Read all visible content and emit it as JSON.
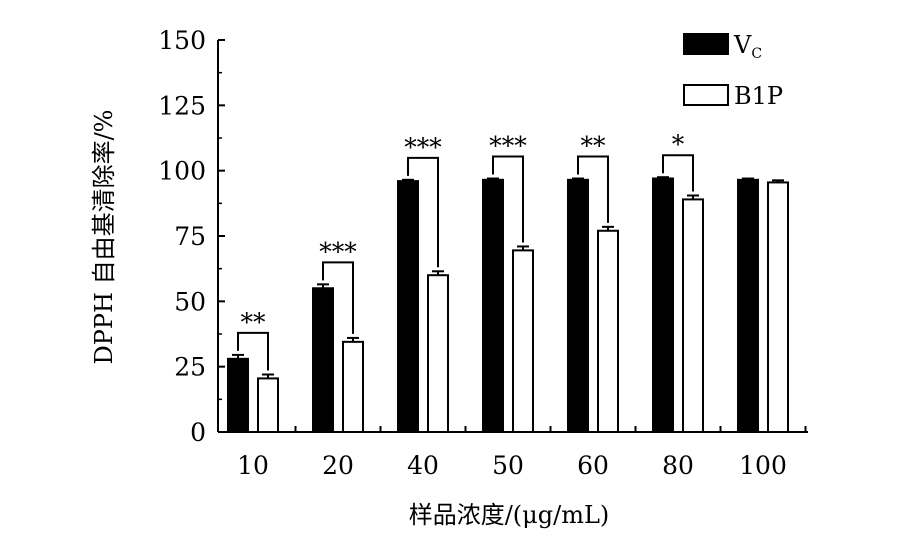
{
  "chart_data": {
    "type": "bar",
    "categories": [
      "10",
      "20",
      "40",
      "50",
      "60",
      "80",
      "100"
    ],
    "series": [
      {
        "name": "V",
        "name_subscript": "C",
        "values": [
          28,
          55,
          96,
          96.5,
          96.5,
          97,
          96.5
        ],
        "errors": [
          1.5,
          1.5,
          0.5,
          0.5,
          0.5,
          0.5,
          0.5
        ],
        "fill": "#000000"
      },
      {
        "name": "B1P",
        "values": [
          20.5,
          34.5,
          60,
          69.5,
          77,
          89,
          95.5
        ],
        "errors": [
          1.5,
          1.5,
          1.5,
          1.5,
          1.5,
          1.5,
          0.8
        ],
        "fill": "#ffffff"
      }
    ],
    "significance": [
      "**",
      "***",
      "***",
      "***",
      "**",
      "*",
      ""
    ],
    "xlabel": "样品浓度/(μg/mL)",
    "ylabel": "DPPH 自由基清除率/%",
    "yticks": [
      0,
      25,
      50,
      75,
      100,
      125,
      150
    ],
    "ylim": [
      0,
      150
    ],
    "grid": false,
    "legend_position": "top-right"
  }
}
